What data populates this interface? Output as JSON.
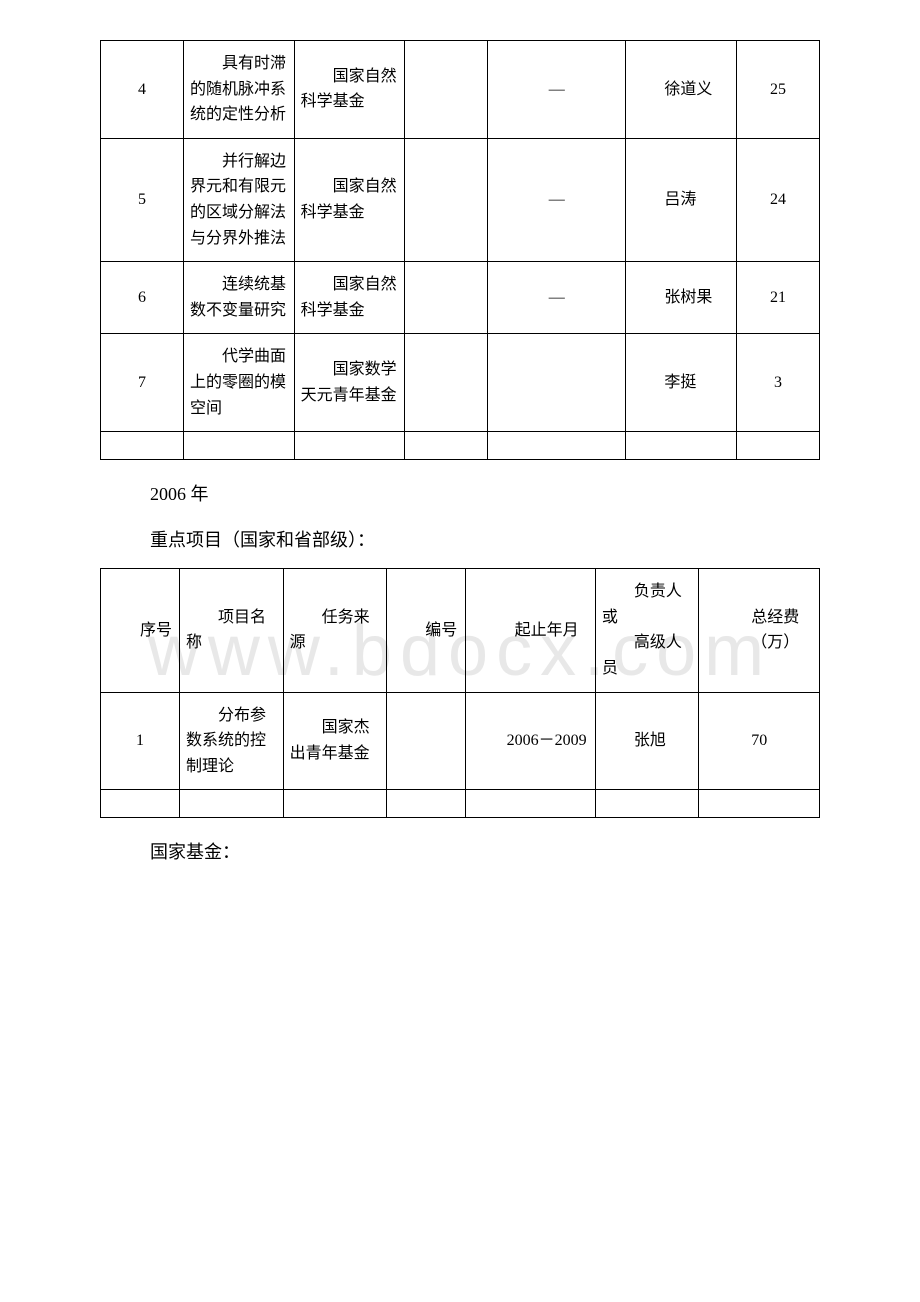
{
  "watermark": "www.bdocx.com",
  "table1": {
    "rows": [
      {
        "num": "4",
        "name": "具有时滞的随机脉冲系统的定性分析",
        "source": "国家自然科学基金",
        "code": "",
        "period": "—",
        "person": "徐道义",
        "fund": "25"
      },
      {
        "num": "5",
        "name": "并行解边界元和有限元的区域分解法与分界外推法",
        "source": "国家自然科学基金",
        "code": "",
        "period": "—",
        "person": "吕涛",
        "fund": "24"
      },
      {
        "num": "6",
        "name": "连续统基数不变量研究",
        "source": "国家自然科学基金",
        "code": "",
        "period": "—",
        "person": "张树果",
        "fund": "21"
      },
      {
        "num": "7",
        "name": "代学曲面上的零圈的模空间",
        "source": "国家数学天元青年基金",
        "code": "",
        "period": "",
        "person": "李挺",
        "fund": "3"
      }
    ]
  },
  "section1": "2006 年",
  "section2": "重点项目（国家和省部级）：",
  "table2": {
    "headers": {
      "num": "序号",
      "name": "项目名称",
      "source": "任务来源",
      "code": "编号",
      "period": "起止年月",
      "person_line1": "负责人或",
      "person_line2": "高级人员",
      "fund_line1": "总经费",
      "fund_line2": "（万）"
    },
    "rows": [
      {
        "num": "1",
        "name": "分布参数系统的控制理论",
        "source": "国家杰出青年基金",
        "code": "",
        "period": "2006－2009",
        "person": "张旭",
        "fund": "70"
      }
    ]
  },
  "section3": "国家基金："
}
